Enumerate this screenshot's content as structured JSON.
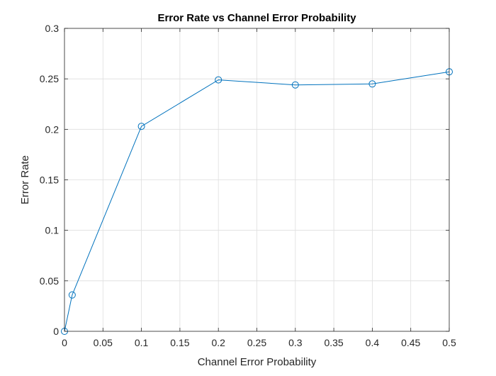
{
  "chart_data": {
    "type": "line",
    "title": "Error Rate vs Channel Error Probability",
    "xlabel": "Channel Error Probability",
    "ylabel": "Error Rate",
    "xlim": [
      0,
      0.5
    ],
    "ylim": [
      0,
      0.3
    ],
    "grid": true,
    "xticks": [
      "0",
      "0.05",
      "0.1",
      "0.15",
      "0.2",
      "0.25",
      "0.3",
      "0.35",
      "0.4",
      "0.45",
      "0.5"
    ],
    "yticks": [
      "0",
      "0.05",
      "0.1",
      "0.15",
      "0.2",
      "0.25",
      "0.3"
    ],
    "series": [
      {
        "x": [
          0,
          0.01,
          0.1,
          0.2,
          0.3,
          0.4,
          0.5
        ],
        "y": [
          0,
          0.036,
          0.203,
          0.249,
          0.244,
          0.245,
          0.257
        ],
        "color": "#0072BD",
        "marker": "circle"
      }
    ]
  }
}
